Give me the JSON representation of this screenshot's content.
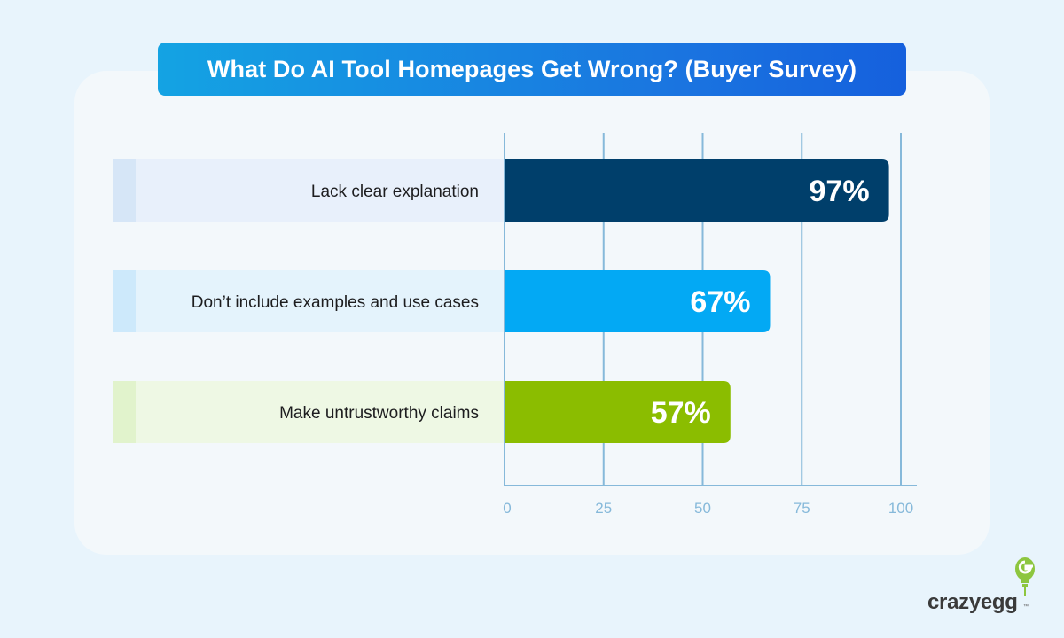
{
  "title": "What Do AI Tool Homepages Get Wrong? (Buyer Survey)",
  "brand": {
    "name": "crazyegg",
    "tm": "™",
    "icon": "lightbulb-egg-icon",
    "color": "#8dc63f"
  },
  "colors": {
    "background": "#e8f4fc",
    "grid": "#86b9da",
    "title_gradient": [
      "#14a3e3",
      "#1560dd"
    ]
  },
  "chart_data": {
    "type": "bar",
    "orientation": "horizontal",
    "title": "What Do AI Tool Homepages Get Wrong? (Buyer Survey)",
    "categories": [
      "Lack clear explanation",
      "Don’t include examples and use cases",
      "Make untrustworthy claims"
    ],
    "values": [
      97,
      67,
      57
    ],
    "value_labels": [
      "97%",
      "67%",
      "57%"
    ],
    "bar_colors": [
      "#003f6b",
      "#03a9f4",
      "#8bbd00"
    ],
    "label_bg_colors": [
      "#e8f0fb",
      "#e4f3fc",
      "#eef8e4"
    ],
    "label_tab_colors": [
      "#d6e6f7",
      "#cde9fb",
      "#e1f3cc"
    ],
    "xlim": [
      0,
      100
    ],
    "xticks": [
      "0",
      "25",
      "50",
      "75",
      "100"
    ],
    "grid": true,
    "legend": false
  }
}
